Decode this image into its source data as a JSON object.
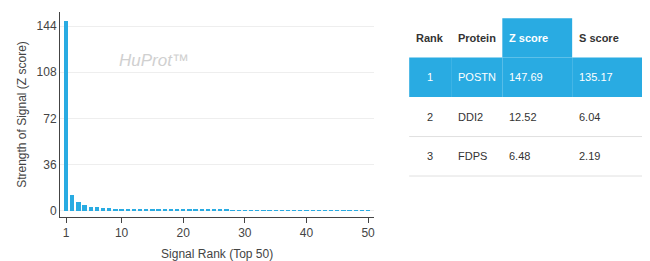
{
  "chart_data": {
    "type": "bar",
    "xlabel": "Signal Rank (Top 50)",
    "ylabel": "Strength of Signal (Z score)",
    "x": [
      1,
      2,
      3,
      4,
      5,
      6,
      7,
      8,
      9,
      10,
      11,
      12,
      13,
      14,
      15,
      16,
      17,
      18,
      19,
      20,
      21,
      22,
      23,
      24,
      25,
      26,
      27,
      28,
      29,
      30,
      31,
      32,
      33,
      34,
      35,
      36,
      37,
      38,
      39,
      40,
      41,
      42,
      43,
      44,
      45,
      46,
      47,
      48,
      49,
      50
    ],
    "values": [
      147.69,
      12.52,
      6.48,
      4.2,
      3.1,
      2.5,
      2.0,
      1.8,
      1.6,
      1.4,
      1.2,
      1.1,
      1.0,
      0.95,
      0.9,
      0.85,
      0.8,
      0.75,
      0.7,
      0.65,
      0.6,
      0.58,
      0.56,
      0.54,
      0.52,
      0.5,
      0.48,
      0.46,
      0.44,
      0.42,
      0.4,
      0.38,
      0.36,
      0.34,
      0.32,
      0.3,
      0.28,
      0.26,
      0.24,
      0.22,
      0.2,
      0.18,
      0.17,
      0.16,
      0.15,
      0.14,
      0.13,
      0.12,
      0.11,
      0.1
    ],
    "color": "#29ABE2",
    "xlim": [
      0,
      51
    ],
    "xticks": [
      1,
      10,
      20,
      30,
      40,
      50
    ],
    "ylim": [
      -5,
      155
    ],
    "yticks": [
      0,
      36,
      72,
      108,
      144
    ],
    "grid": true,
    "annotations": [
      "HuProt™"
    ],
    "table": [
      [
        "Rank",
        "Protein",
        "Z score",
        "S score"
      ],
      [
        "1",
        "POSTN",
        "147.69",
        "135.17"
      ],
      [
        "2",
        "DDI2",
        "12.52",
        "6.04"
      ],
      [
        "3",
        "FDPS",
        "6.48",
        "2.19"
      ]
    ]
  }
}
